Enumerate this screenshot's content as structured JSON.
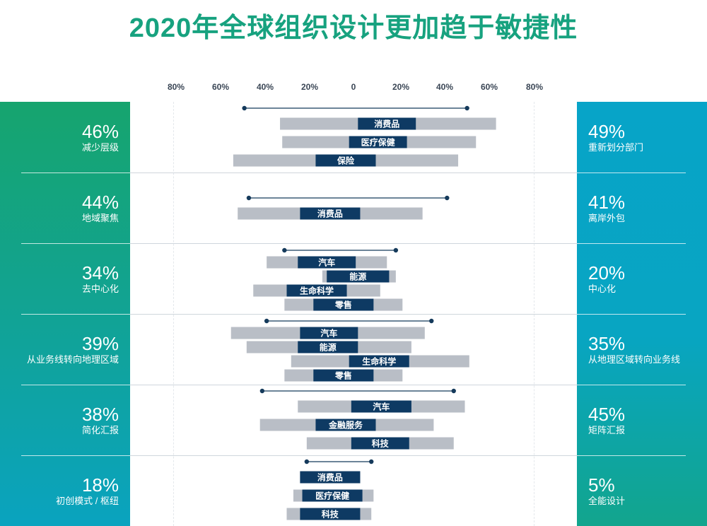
{
  "title": "2020年全球组织设计更加趋于敏捷性",
  "axis_ticks": [
    "80%",
    "60%",
    "40%",
    "20%",
    "0",
    "20%",
    "40%",
    "60%",
    "80%"
  ],
  "colors": {
    "accent": "#17a27f",
    "bar_bg": "#b9bec6",
    "bar_fg": "#0e3a63",
    "dumbbell": "#153a5b"
  },
  "chart_data": {
    "type": "bar",
    "title": "2020年全球组织设计更加趋于敏捷性",
    "xlim": [
      -80,
      80
    ],
    "groups": [
      {
        "left_pct": "46%",
        "left_label": "减少层级",
        "right_pct": "49%",
        "right_label": "重新划分部门",
        "range": [
          -49,
          51
        ],
        "bars": [
          {
            "label": "消费品",
            "outer": [
              -33,
              64
            ],
            "inner": [
              2,
              28
            ]
          },
          {
            "label": "医疗保健",
            "outer": [
              -32,
              55
            ],
            "inner": [
              -2,
              24
            ]
          },
          {
            "label": "保险",
            "outer": [
              -54,
              47
            ],
            "inner": [
              -17,
              10
            ]
          }
        ]
      },
      {
        "left_pct": "44%",
        "left_label": "地域聚焦",
        "right_pct": "41%",
        "right_label": "离岸外包",
        "range": [
          -47,
          42
        ],
        "bars": [
          {
            "label": "消费品",
            "outer": [
              -52,
              31
            ],
            "inner": [
              -24,
              3
            ]
          }
        ]
      },
      {
        "left_pct": "34%",
        "left_label": "去中心化",
        "right_pct": "20%",
        "right_label": "中心化",
        "range": [
          -31,
          19
        ],
        "bars": [
          {
            "label": "汽车",
            "outer": [
              -39,
              15
            ],
            "inner": [
              -25,
              1
            ]
          },
          {
            "label": "能源",
            "outer": [
              -14,
              19
            ],
            "inner": [
              -12,
              16
            ]
          },
          {
            "label": "生命科学",
            "outer": [
              -45,
              12
            ],
            "inner": [
              -30,
              -3
            ]
          },
          {
            "label": "零售",
            "outer": [
              -31,
              22
            ],
            "inner": [
              -18,
              9
            ]
          }
        ]
      },
      {
        "left_pct": "39%",
        "left_label": "从业务线转向地理区域",
        "right_pct": "35%",
        "right_label": "从地理区域转向业务线",
        "range": [
          -39,
          35
        ],
        "bars": [
          {
            "label": "汽车",
            "outer": [
              -55,
              32
            ],
            "inner": [
              -24,
              2
            ]
          },
          {
            "label": "能源",
            "outer": [
              -48,
              26
            ],
            "inner": [
              -25,
              2
            ]
          },
          {
            "label": "生命科学",
            "outer": [
              -28,
              52
            ],
            "inner": [
              -2,
              25
            ]
          },
          {
            "label": "零售",
            "outer": [
              -31,
              22
            ],
            "inner": [
              -18,
              9
            ]
          }
        ]
      },
      {
        "left_pct": "38%",
        "left_label": "简化汇报",
        "right_pct": "45%",
        "right_label": "矩阵汇报",
        "range": [
          -41,
          45
        ],
        "bars": [
          {
            "label": "汽车",
            "outer": [
              -25,
              50
            ],
            "inner": [
              -1,
              26
            ]
          },
          {
            "label": "金融服务",
            "outer": [
              -42,
              36
            ],
            "inner": [
              -17,
              10
            ]
          },
          {
            "label": "科技",
            "outer": [
              -21,
              45
            ],
            "inner": [
              -1,
              25
            ]
          }
        ]
      },
      {
        "left_pct": "18%",
        "left_label": "初创模式 / 枢纽",
        "right_pct": "5%",
        "right_label": "全能设计",
        "range": [
          -21,
          8
        ],
        "bars": [
          {
            "label": "消费品",
            "outer": [
              -24,
              3
            ],
            "inner": [
              -24,
              3
            ]
          },
          {
            "label": "医疗保健",
            "outer": [
              -27,
              9
            ],
            "inner": [
              -23,
              4
            ]
          },
          {
            "label": "科技",
            "outer": [
              -30,
              8
            ],
            "inner": [
              -24,
              3
            ]
          }
        ]
      }
    ]
  }
}
